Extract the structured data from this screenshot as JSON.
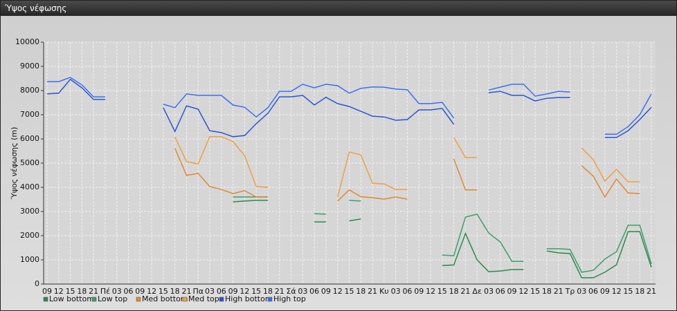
{
  "window": {
    "title": "Ύψος νέφωσης"
  },
  "chart_data": {
    "type": "line",
    "y_label": "Ύψος νέφωσης (m)",
    "categories": [
      "09",
      "12",
      "15",
      "18",
      "21",
      "Πέ",
      "03",
      "06",
      "09",
      "12",
      "15",
      "18",
      "21",
      "Πα",
      "03",
      "06",
      "09",
      "12",
      "15",
      "18",
      "21",
      "Σά",
      "03",
      "06",
      "09",
      "12",
      "15",
      "18",
      "21",
      "Κυ",
      "03",
      "06",
      "09",
      "12",
      "15",
      "18",
      "21",
      "Δε",
      "03",
      "06",
      "09",
      "12",
      "15",
      "18",
      "21",
      "Τρ",
      "03",
      "06",
      "09",
      "12",
      "15",
      "18",
      "21"
    ],
    "ylim": [
      0,
      10000
    ],
    "yticks": [
      0,
      1000,
      2000,
      3000,
      4000,
      5000,
      6000,
      7000,
      8000,
      9000,
      10000
    ],
    "grid": true,
    "series": [
      {
        "name": "Low bottom",
        "color": "#2a8a4a",
        "values": [
          null,
          null,
          null,
          null,
          null,
          null,
          null,
          null,
          null,
          null,
          null,
          null,
          null,
          null,
          null,
          null,
          3400,
          3430,
          3460,
          3460,
          null,
          null,
          null,
          2570,
          2570,
          null,
          2610,
          2690,
          null,
          null,
          null,
          null,
          null,
          null,
          770,
          790,
          2090,
          1000,
          510,
          540,
          600,
          600,
          null,
          1370,
          1290,
          1260,
          260,
          260,
          490,
          800,
          2170,
          2170,
          690
        ]
      },
      {
        "name": "Low top",
        "color": "#3aa068",
        "values": [
          null,
          null,
          null,
          null,
          null,
          null,
          null,
          null,
          null,
          null,
          null,
          null,
          null,
          null,
          null,
          null,
          3600,
          3600,
          3600,
          3600,
          null,
          null,
          null,
          2910,
          2890,
          null,
          3460,
          3430,
          null,
          null,
          null,
          null,
          null,
          null,
          1200,
          1170,
          2770,
          2890,
          2110,
          1740,
          940,
          940,
          null,
          1460,
          1460,
          1430,
          490,
          570,
          1030,
          1340,
          2430,
          2430,
          830
        ]
      },
      {
        "name": "Med bottom",
        "color": "#e0892e",
        "values": [
          null,
          null,
          null,
          null,
          null,
          null,
          null,
          null,
          null,
          null,
          null,
          5610,
          4490,
          4570,
          4030,
          3910,
          3740,
          3860,
          3600,
          3600,
          null,
          null,
          null,
          null,
          null,
          3430,
          3890,
          3610,
          3570,
          3510,
          3600,
          3510,
          null,
          null,
          null,
          5170,
          3890,
          3890,
          null,
          null,
          null,
          null,
          null,
          null,
          null,
          null,
          4890,
          4460,
          3600,
          4340,
          3770,
          3740,
          null
        ]
      },
      {
        "name": "Med top",
        "color": "#f0a040",
        "values": [
          null,
          null,
          null,
          null,
          null,
          null,
          null,
          null,
          null,
          null,
          null,
          6080,
          5060,
          4970,
          6090,
          6090,
          5890,
          5310,
          4030,
          4000,
          null,
          null,
          null,
          null,
          null,
          3600,
          5460,
          5340,
          4170,
          4140,
          3910,
          3910,
          null,
          null,
          null,
          6060,
          5230,
          5230,
          null,
          null,
          null,
          null,
          null,
          null,
          null,
          null,
          5630,
          5140,
          4260,
          4740,
          4230,
          4230,
          null
        ]
      },
      {
        "name": "High bottom",
        "color": "#2a55d0",
        "values": [
          7860,
          7890,
          8460,
          8110,
          7630,
          7630,
          null,
          null,
          null,
          null,
          7290,
          6310,
          7370,
          7230,
          6340,
          6260,
          6090,
          6140,
          6630,
          7060,
          7740,
          7740,
          7800,
          7400,
          7720,
          7460,
          7340,
          7140,
          6940,
          6910,
          6770,
          6800,
          7200,
          7200,
          7260,
          6600,
          null,
          null,
          7910,
          7970,
          7800,
          7800,
          7570,
          7680,
          7710,
          7710,
          null,
          null,
          6060,
          6060,
          6340,
          6800,
          7310
        ]
      },
      {
        "name": "High top",
        "color": "#3a6ef0",
        "values": [
          8370,
          8370,
          8540,
          8230,
          7740,
          7740,
          null,
          null,
          null,
          null,
          7430,
          7290,
          7860,
          7800,
          7800,
          7800,
          7400,
          7310,
          6910,
          7290,
          7970,
          7970,
          8260,
          8110,
          8260,
          8200,
          7890,
          8090,
          8150,
          8140,
          8060,
          8030,
          7460,
          7460,
          7510,
          6860,
          null,
          null,
          8020,
          8140,
          8260,
          8260,
          7770,
          7860,
          7970,
          7940,
          null,
          null,
          6190,
          6190,
          6510,
          7000,
          7860
        ]
      }
    ]
  }
}
